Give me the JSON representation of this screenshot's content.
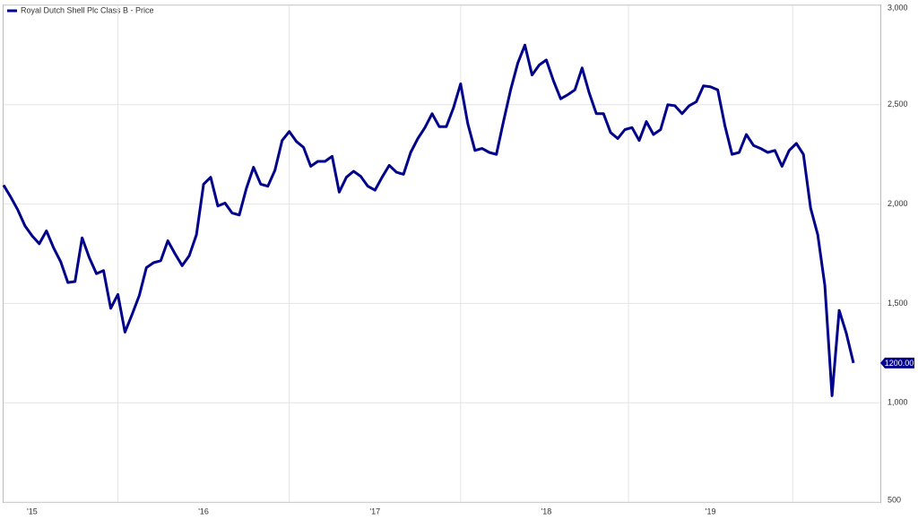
{
  "chart_data": {
    "type": "line",
    "legend": "Royal Dutch Shell Plc Class B - Price",
    "color": "#00008b",
    "ylim": [
      500,
      3000
    ],
    "yticks": [
      {
        "value": 3000,
        "label": "3,000"
      },
      {
        "value": 2500,
        "label": "2,500"
      },
      {
        "value": 2000,
        "label": "2,000"
      },
      {
        "value": 1500,
        "label": "1,500"
      },
      {
        "value": 1000,
        "label": "1,000"
      },
      500
    ],
    "grid": true,
    "last_value_label": "1200.00",
    "categories": [
      null,
      null,
      null,
      null,
      "'15",
      null,
      null,
      null,
      null,
      null,
      null,
      null,
      null,
      null,
      null,
      null,
      null,
      null,
      null,
      null,
      null,
      null,
      null,
      null,
      null,
      null,
      null,
      null,
      "'16",
      null,
      null,
      null,
      null,
      null,
      null,
      null,
      null,
      null,
      null,
      null,
      null,
      null,
      null,
      null,
      null,
      null,
      null,
      null,
      null,
      null,
      null,
      null,
      "'17",
      null,
      null,
      null,
      null,
      null,
      null,
      null,
      null,
      null,
      null,
      null,
      null,
      null,
      null,
      null,
      null,
      null,
      null,
      null,
      null,
      null,
      null,
      null,
      "'18",
      null,
      null,
      null,
      null,
      null,
      null,
      null,
      null,
      null,
      null,
      null,
      null,
      null,
      null,
      null,
      null,
      null,
      null,
      null,
      null,
      null,
      null,
      "'19",
      null,
      null,
      null,
      null,
      null,
      null,
      null,
      null,
      null,
      null,
      null,
      null,
      null,
      null,
      null,
      null,
      null,
      null,
      null,
      null
    ],
    "values": [
      2095,
      2035,
      1970,
      1890,
      1840,
      1800,
      1865,
      1780,
      1710,
      1605,
      1610,
      1830,
      1730,
      1650,
      1665,
      1475,
      1545,
      1355,
      1445,
      1540,
      1680,
      1705,
      1715,
      1815,
      1750,
      1690,
      1740,
      1845,
      2100,
      2135,
      1990,
      2005,
      1955,
      1945,
      2080,
      2185,
      2100,
      2090,
      2170,
      2320,
      2365,
      2315,
      2285,
      2190,
      2215,
      2215,
      2240,
      2060,
      2135,
      2165,
      2140,
      2090,
      2070,
      2135,
      2195,
      2160,
      2150,
      2260,
      2330,
      2385,
      2455,
      2390,
      2390,
      2485,
      2605,
      2405,
      2270,
      2280,
      2260,
      2250,
      2415,
      2575,
      2710,
      2800,
      2650,
      2700,
      2725,
      2620,
      2530,
      2550,
      2575,
      2685,
      2560,
      2455,
      2455,
      2360,
      2330,
      2375,
      2385,
      2320,
      2415,
      2350,
      2375,
      2500,
      2495,
      2455,
      2495,
      2515,
      2595,
      2590,
      2575,
      2395,
      2250,
      2260,
      2350,
      2295,
      2280,
      2260,
      2270,
      2190,
      2270,
      2305,
      2250,
      1980,
      1845,
      1590,
      1035,
      1465,
      1350,
      1200
    ]
  }
}
